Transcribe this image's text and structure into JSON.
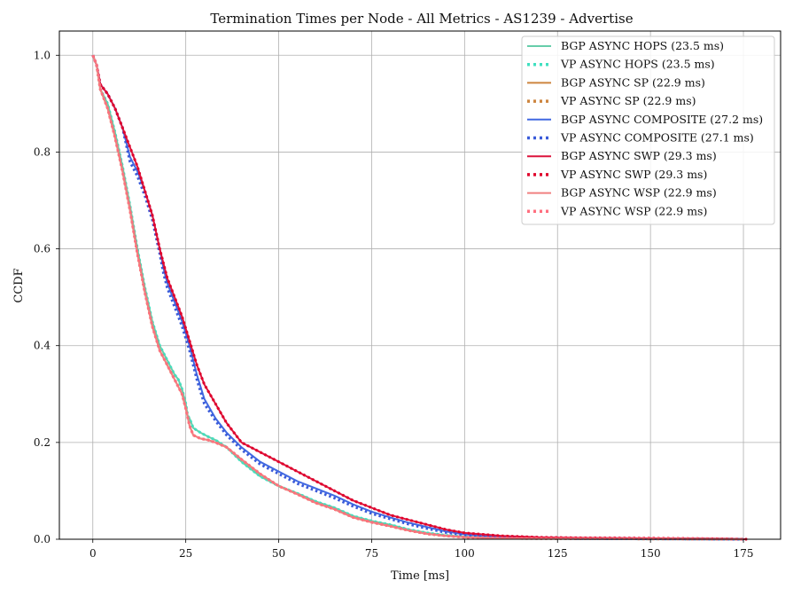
{
  "chart_data": {
    "type": "line",
    "title": "Termination Times per Node - All Metrics - AS1239 - Advertise",
    "xlabel": "Time [ms]",
    "ylabel": "CCDF",
    "xlim": [
      -9,
      185
    ],
    "ylim": [
      0,
      1.05
    ],
    "xticks": [
      0,
      25,
      50,
      75,
      100,
      125,
      150,
      175
    ],
    "yticks": [
      0.0,
      0.2,
      0.4,
      0.6,
      0.8,
      1.0
    ],
    "xtick_labels": [
      "0",
      "25",
      "50",
      "75",
      "100",
      "125",
      "150",
      "175"
    ],
    "ytick_labels": [
      "0.0",
      "0.2",
      "0.4",
      "0.6",
      "0.8",
      "1.0"
    ],
    "grid": true,
    "legend_position": "top-right",
    "series": [
      {
        "name": "BGP ASYNC HOPS (23.5 ms)",
        "color": "#66cdaa",
        "style": "solid",
        "x": [
          0,
          1,
          2,
          4,
          6,
          8,
          10,
          12,
          14,
          16,
          18,
          20,
          22,
          23,
          24,
          25,
          25.5,
          26,
          27,
          29,
          31,
          33,
          36,
          40,
          45,
          50,
          55,
          60,
          65,
          70,
          75,
          80,
          85,
          90,
          95,
          100,
          110,
          120,
          140,
          160,
          175
        ],
        "y": [
          1.0,
          0.98,
          0.93,
          0.9,
          0.84,
          0.77,
          0.69,
          0.6,
          0.52,
          0.45,
          0.4,
          0.37,
          0.34,
          0.33,
          0.31,
          0.28,
          0.255,
          0.25,
          0.23,
          0.22,
          0.212,
          0.205,
          0.19,
          0.16,
          0.13,
          0.11,
          0.095,
          0.078,
          0.065,
          0.048,
          0.038,
          0.03,
          0.02,
          0.013,
          0.008,
          0.005,
          0.003,
          0.002,
          0.001,
          0.0005,
          0.0
        ]
      },
      {
        "name": "VP ASYNC HOPS (23.5 ms)",
        "color": "#40e0c0",
        "style": "dotted",
        "x": [
          0,
          1,
          2,
          4,
          6,
          8,
          10,
          12,
          14,
          16,
          18,
          20,
          22,
          23,
          24,
          25,
          25.5,
          26,
          27,
          29,
          31,
          33,
          36,
          40,
          45,
          50,
          55,
          60,
          65,
          70,
          75,
          80,
          85,
          90,
          95,
          100,
          110,
          120,
          140,
          160,
          175
        ],
        "y": [
          1.0,
          0.98,
          0.93,
          0.9,
          0.84,
          0.77,
          0.69,
          0.6,
          0.52,
          0.45,
          0.4,
          0.37,
          0.34,
          0.33,
          0.31,
          0.28,
          0.255,
          0.25,
          0.23,
          0.22,
          0.212,
          0.205,
          0.19,
          0.16,
          0.13,
          0.11,
          0.095,
          0.078,
          0.065,
          0.048,
          0.038,
          0.03,
          0.02,
          0.013,
          0.008,
          0.005,
          0.003,
          0.002,
          0.001,
          0.0005,
          0.0
        ]
      },
      {
        "name": "BGP ASYNC SP (22.9 ms)",
        "color": "#cd853f",
        "style": "solid",
        "x": [
          0,
          1,
          2,
          4,
          6,
          8,
          10,
          12,
          14,
          16,
          18,
          20,
          22,
          24,
          25,
          26,
          27,
          29,
          31,
          33,
          36,
          40,
          45,
          50,
          55,
          60,
          65,
          70,
          75,
          80,
          85,
          90,
          95,
          100,
          110,
          120,
          140,
          160,
          175
        ],
        "y": [
          1.0,
          0.98,
          0.93,
          0.89,
          0.83,
          0.76,
          0.68,
          0.59,
          0.51,
          0.44,
          0.39,
          0.36,
          0.33,
          0.3,
          0.27,
          0.235,
          0.215,
          0.208,
          0.205,
          0.2,
          0.19,
          0.165,
          0.135,
          0.11,
          0.093,
          0.075,
          0.062,
          0.045,
          0.035,
          0.027,
          0.018,
          0.011,
          0.007,
          0.004,
          0.002,
          0.0015,
          0.001,
          0.0005,
          0.0
        ]
      },
      {
        "name": "VP ASYNC SP (22.9 ms)",
        "color": "#cd853f",
        "style": "dotted",
        "x": [
          0,
          1,
          2,
          4,
          6,
          8,
          10,
          12,
          14,
          16,
          18,
          20,
          22,
          24,
          25,
          26,
          27,
          29,
          31,
          33,
          36,
          40,
          45,
          50,
          55,
          60,
          65,
          70,
          75,
          80,
          85,
          90,
          95,
          100,
          110,
          120,
          140,
          160,
          175
        ],
        "y": [
          1.0,
          0.98,
          0.93,
          0.89,
          0.83,
          0.76,
          0.68,
          0.59,
          0.51,
          0.44,
          0.39,
          0.36,
          0.33,
          0.3,
          0.27,
          0.235,
          0.215,
          0.208,
          0.205,
          0.2,
          0.19,
          0.165,
          0.135,
          0.11,
          0.093,
          0.075,
          0.062,
          0.045,
          0.035,
          0.027,
          0.018,
          0.011,
          0.007,
          0.004,
          0.002,
          0.0015,
          0.001,
          0.0005,
          0.0
        ]
      },
      {
        "name": "BGP ASYNC COMPOSITE (27.2 ms)",
        "color": "#4169e1",
        "style": "solid",
        "x": [
          0,
          1,
          2,
          4,
          6,
          8,
          10,
          12,
          14,
          16,
          18,
          19,
          20,
          22,
          24,
          26,
          28,
          30,
          33,
          36,
          40,
          45,
          50,
          55,
          60,
          65,
          70,
          75,
          80,
          85,
          90,
          95,
          100,
          110,
          120,
          130,
          150,
          175
        ],
        "y": [
          1.0,
          0.98,
          0.94,
          0.92,
          0.89,
          0.85,
          0.79,
          0.76,
          0.72,
          0.67,
          0.6,
          0.56,
          0.53,
          0.49,
          0.45,
          0.4,
          0.34,
          0.29,
          0.25,
          0.22,
          0.19,
          0.16,
          0.14,
          0.12,
          0.105,
          0.09,
          0.072,
          0.057,
          0.045,
          0.034,
          0.025,
          0.016,
          0.01,
          0.005,
          0.003,
          0.002,
          0.001,
          0.0
        ]
      },
      {
        "name": "VP ASYNC COMPOSITE (27.1 ms)",
        "color": "#3a5bd9",
        "style": "dotted",
        "x": [
          0,
          1,
          2,
          4,
          6,
          8,
          10,
          12,
          14,
          16,
          18,
          19,
          20,
          22,
          24,
          26,
          28,
          30,
          33,
          36,
          40,
          45,
          50,
          55,
          60,
          65,
          70,
          75,
          80,
          85,
          90,
          95,
          100,
          110,
          120,
          130,
          150,
          175
        ],
        "y": [
          1.0,
          0.98,
          0.94,
          0.92,
          0.89,
          0.85,
          0.78,
          0.75,
          0.71,
          0.66,
          0.59,
          0.55,
          0.52,
          0.48,
          0.44,
          0.39,
          0.33,
          0.28,
          0.245,
          0.215,
          0.185,
          0.155,
          0.135,
          0.115,
          0.1,
          0.085,
          0.068,
          0.053,
          0.042,
          0.031,
          0.022,
          0.014,
          0.009,
          0.004,
          0.0025,
          0.0015,
          0.001,
          0.0
        ]
      },
      {
        "name": "BGP ASYNC SWP (29.3 ms)",
        "color": "#dc143c",
        "style": "solid",
        "x": [
          0,
          1,
          2,
          4,
          6,
          8,
          10,
          12,
          14,
          16,
          18,
          20,
          21,
          22,
          24,
          26,
          28,
          30,
          33,
          36,
          40,
          45,
          50,
          55,
          60,
          65,
          70,
          75,
          80,
          85,
          90,
          95,
          100,
          110,
          120,
          130,
          150,
          170,
          176
        ],
        "y": [
          1.0,
          0.98,
          0.94,
          0.92,
          0.89,
          0.85,
          0.81,
          0.77,
          0.72,
          0.67,
          0.6,
          0.54,
          0.52,
          0.5,
          0.46,
          0.41,
          0.36,
          0.32,
          0.28,
          0.24,
          0.2,
          0.18,
          0.16,
          0.14,
          0.12,
          0.1,
          0.08,
          0.065,
          0.05,
          0.04,
          0.03,
          0.02,
          0.013,
          0.007,
          0.004,
          0.003,
          0.002,
          0.001,
          0.0
        ]
      },
      {
        "name": "VP ASYNC SWP (29.3 ms)",
        "color": "#e0002a",
        "style": "dotted",
        "x": [
          0,
          1,
          2,
          4,
          6,
          8,
          10,
          12,
          14,
          16,
          18,
          20,
          21,
          22,
          24,
          26,
          28,
          30,
          33,
          36,
          40,
          45,
          50,
          55,
          60,
          65,
          70,
          75,
          80,
          85,
          90,
          95,
          100,
          110,
          120,
          130,
          150,
          170,
          176
        ],
        "y": [
          1.0,
          0.98,
          0.94,
          0.92,
          0.89,
          0.85,
          0.81,
          0.77,
          0.72,
          0.67,
          0.6,
          0.54,
          0.52,
          0.5,
          0.46,
          0.41,
          0.36,
          0.32,
          0.28,
          0.24,
          0.2,
          0.18,
          0.16,
          0.14,
          0.12,
          0.1,
          0.08,
          0.065,
          0.05,
          0.04,
          0.03,
          0.02,
          0.013,
          0.007,
          0.004,
          0.003,
          0.002,
          0.001,
          0.0
        ]
      },
      {
        "name": "BGP ASYNC WSP (22.9 ms)",
        "color": "#f08080",
        "style": "solid",
        "x": [
          0,
          1,
          2,
          4,
          6,
          8,
          10,
          12,
          14,
          16,
          18,
          20,
          22,
          24,
          25,
          26,
          27,
          29,
          31,
          33,
          36,
          40,
          45,
          50,
          55,
          60,
          65,
          70,
          75,
          80,
          85,
          90,
          95,
          100,
          110,
          120,
          140,
          160,
          175
        ],
        "y": [
          1.0,
          0.98,
          0.93,
          0.89,
          0.83,
          0.76,
          0.68,
          0.59,
          0.51,
          0.44,
          0.39,
          0.36,
          0.33,
          0.3,
          0.27,
          0.235,
          0.215,
          0.208,
          0.205,
          0.2,
          0.19,
          0.165,
          0.135,
          0.11,
          0.093,
          0.075,
          0.062,
          0.045,
          0.035,
          0.027,
          0.018,
          0.011,
          0.007,
          0.004,
          0.002,
          0.0015,
          0.001,
          0.0005,
          0.0
        ]
      },
      {
        "name": "VP ASYNC WSP (22.9 ms)",
        "color": "#ff6f7f",
        "style": "dotted",
        "x": [
          0,
          1,
          2,
          4,
          6,
          8,
          10,
          12,
          14,
          16,
          18,
          20,
          22,
          24,
          25,
          26,
          27,
          29,
          31,
          33,
          36,
          40,
          45,
          50,
          55,
          60,
          65,
          70,
          75,
          80,
          85,
          90,
          95,
          100,
          110,
          120,
          140,
          160,
          175
        ],
        "y": [
          1.0,
          0.98,
          0.93,
          0.89,
          0.83,
          0.76,
          0.68,
          0.59,
          0.51,
          0.44,
          0.39,
          0.36,
          0.33,
          0.3,
          0.27,
          0.235,
          0.215,
          0.208,
          0.205,
          0.2,
          0.19,
          0.165,
          0.135,
          0.11,
          0.093,
          0.075,
          0.062,
          0.045,
          0.035,
          0.027,
          0.018,
          0.011,
          0.007,
          0.004,
          0.002,
          0.0015,
          0.001,
          0.0005,
          0.0
        ]
      }
    ]
  }
}
